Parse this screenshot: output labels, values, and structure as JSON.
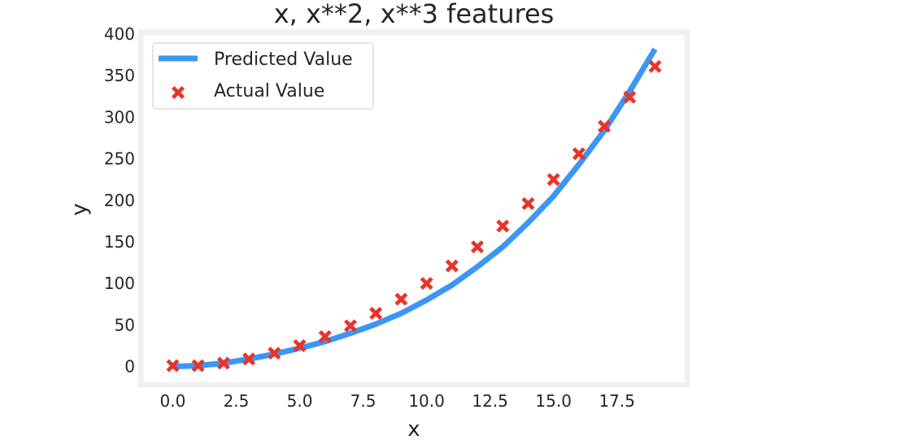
{
  "chart_data": {
    "type": "scatter",
    "title": "x, x**2, x**3 features",
    "xlabel": "x",
    "ylabel": "y",
    "xlim": [
      -1.2,
      20.2
    ],
    "ylim": [
      -20,
      400
    ],
    "xticks": [
      0.0,
      2.5,
      5.0,
      7.5,
      10.0,
      12.5,
      15.0,
      17.5
    ],
    "xtick_labels": [
      "0.0",
      "2.5",
      "5.0",
      "7.5",
      "10.0",
      "12.5",
      "15.0",
      "17.5"
    ],
    "yticks": [
      0,
      50,
      100,
      150,
      200,
      250,
      300,
      350,
      400
    ],
    "ytick_labels": [
      "0",
      "50",
      "100",
      "150",
      "200",
      "250",
      "300",
      "350",
      "400"
    ],
    "grid": false,
    "legend_position": "top-left",
    "colors": {
      "background": "#ffffff",
      "frame": "#f0f0f0",
      "predicted": "#3b96f5",
      "actual": "#e8342a"
    },
    "series": [
      {
        "name": "Predicted Value",
        "kind": "line",
        "x": [
          0,
          1,
          2,
          3,
          4,
          5,
          6,
          7,
          8,
          9,
          10,
          11,
          12,
          13,
          14,
          15,
          16,
          17,
          18,
          19
        ],
        "values": [
          0,
          1,
          4,
          9,
          15,
          22,
          30,
          40,
          51,
          64,
          80,
          98,
          120,
          144,
          173,
          205,
          243,
          284,
          331,
          382
        ]
      },
      {
        "name": "Actual Value",
        "kind": "scatter",
        "marker": "X",
        "x": [
          0,
          1,
          2,
          3,
          4,
          5,
          6,
          7,
          8,
          9,
          10,
          11,
          12,
          13,
          14,
          15,
          16,
          17,
          18,
          19
        ],
        "values": [
          1,
          1,
          4,
          9,
          16,
          25,
          36,
          49,
          64,
          81,
          100,
          121,
          144,
          169,
          196,
          225,
          256,
          289,
          324,
          361
        ]
      }
    ]
  }
}
